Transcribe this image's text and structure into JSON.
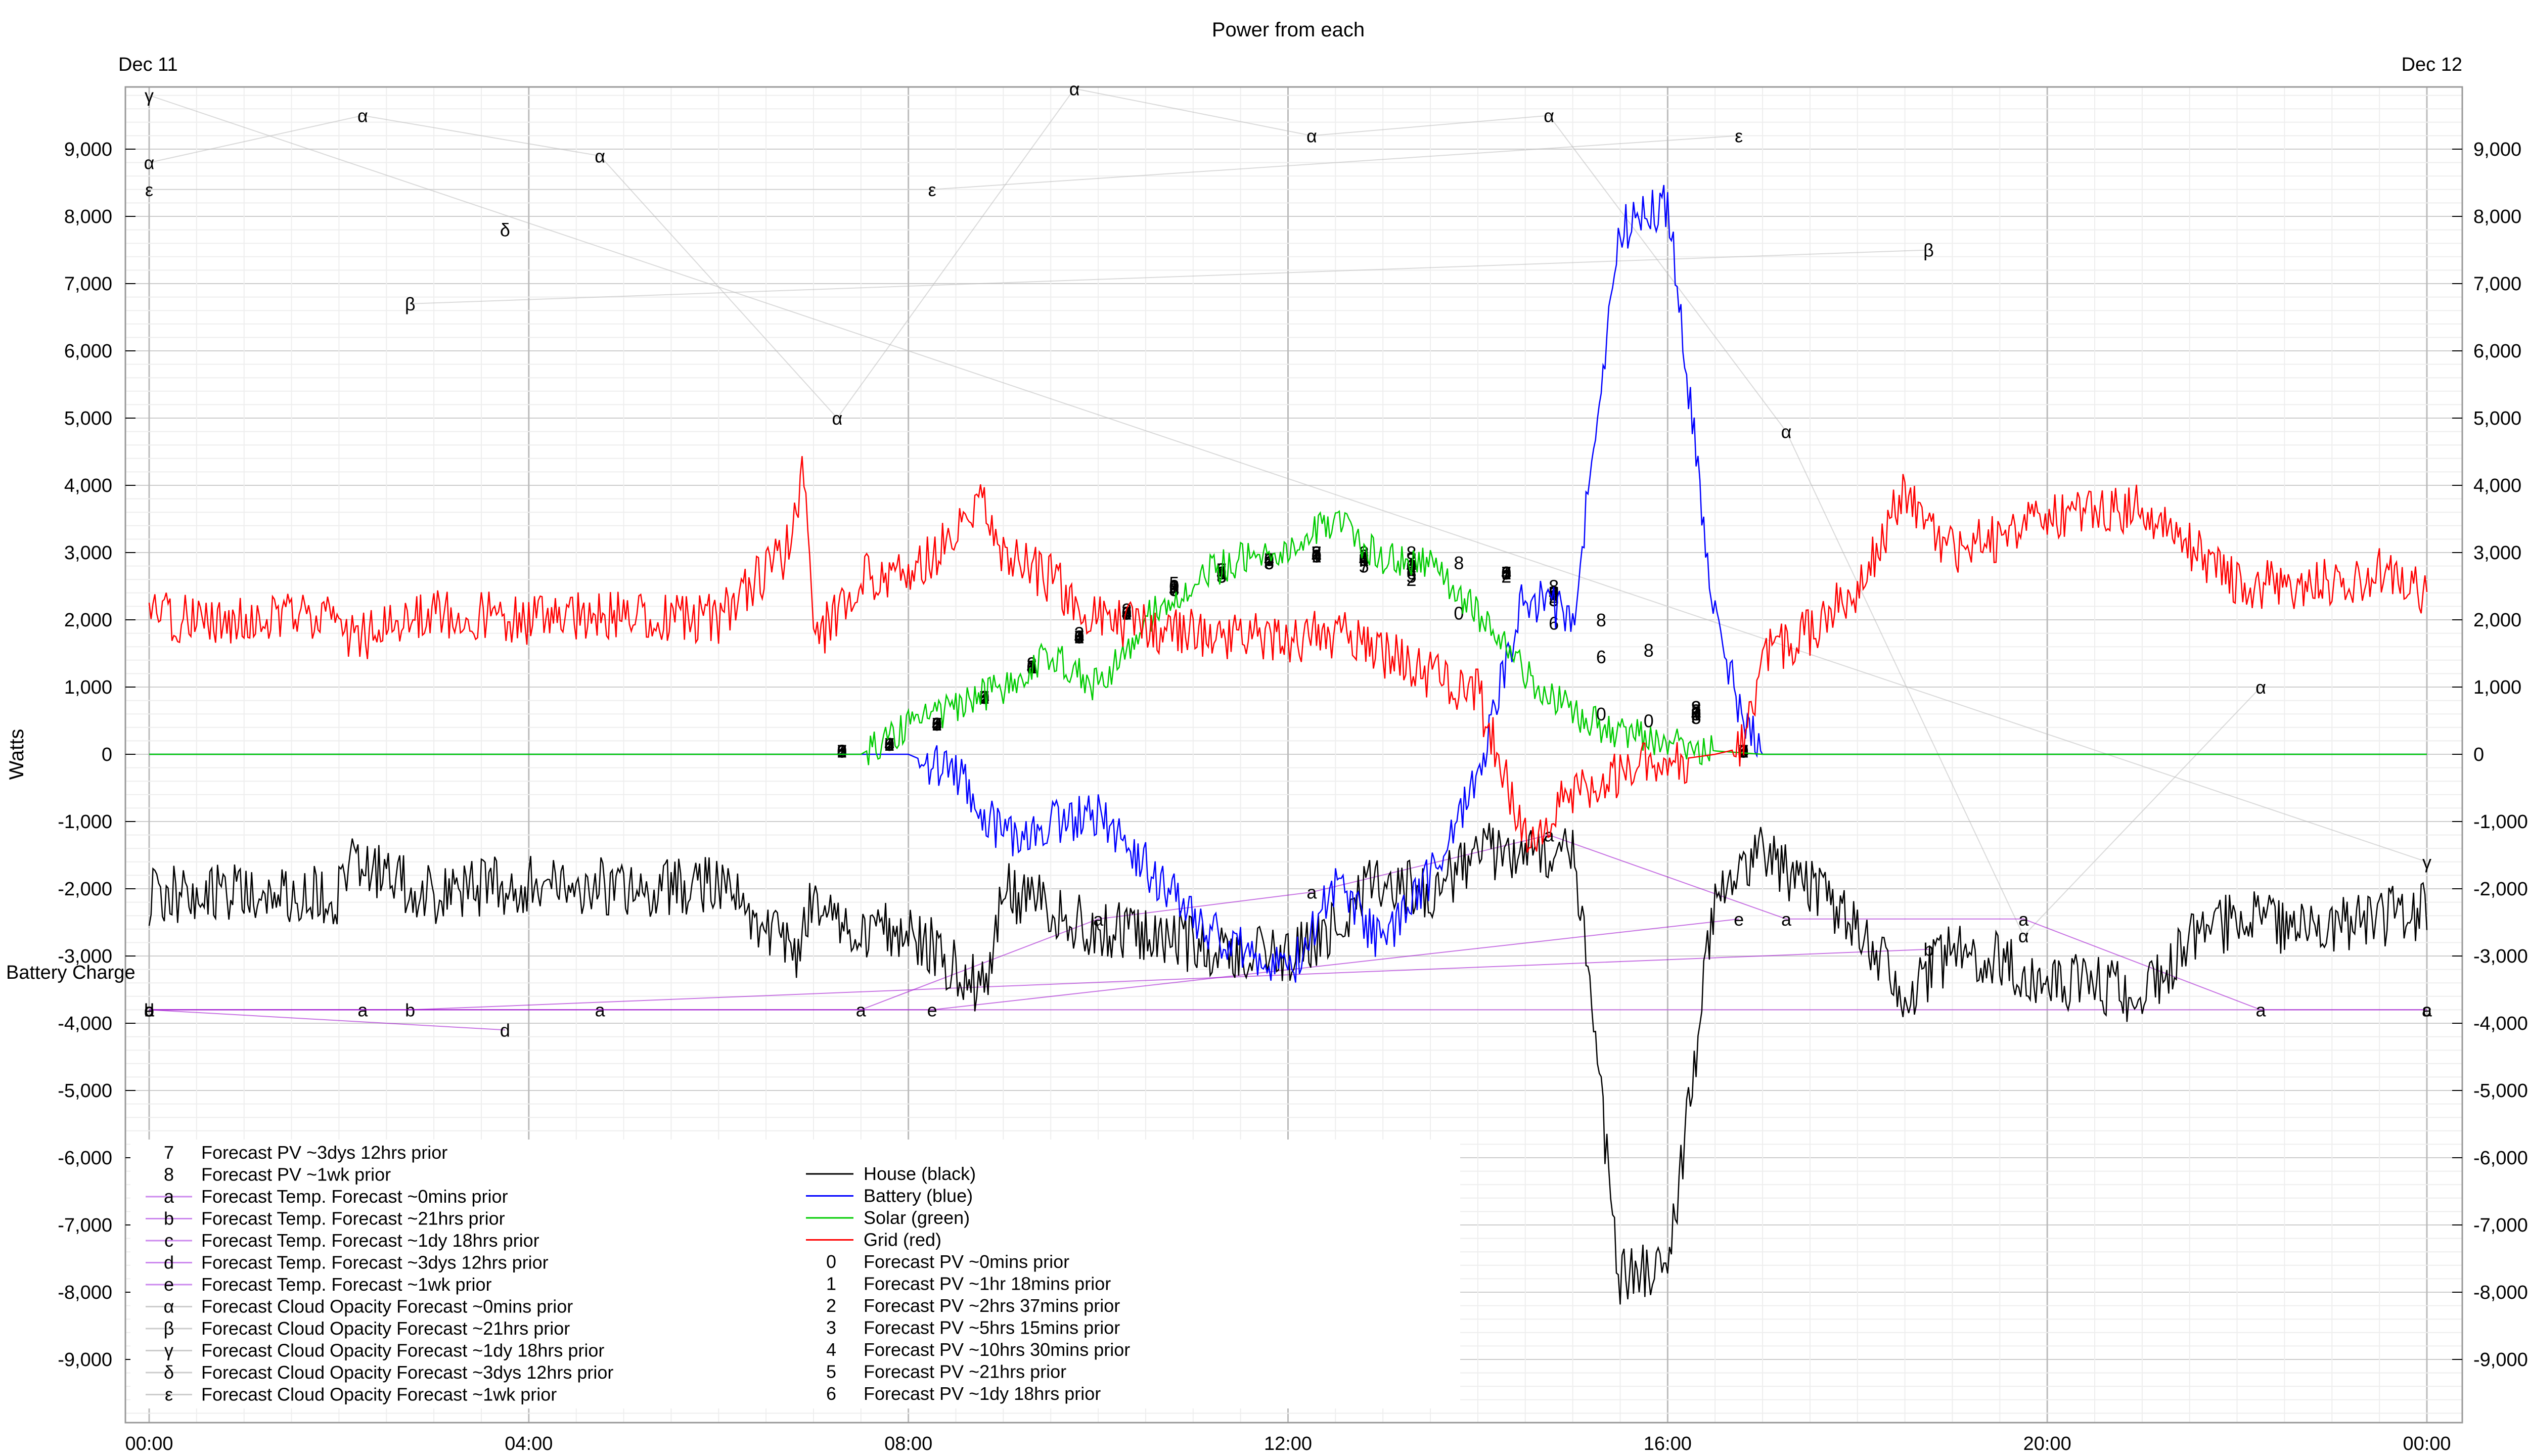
{
  "chart_data": {
    "type": "line",
    "title": "Power from each",
    "ylabel": "Watts",
    "battery_label": "Battery Charge",
    "date_start": "Dec 11",
    "date_end": "Dec 12",
    "x_ticks": [
      "00:00",
      "04:00",
      "08:00",
      "12:00",
      "16:00",
      "20:00",
      "00:00"
    ],
    "x_range_hours": [
      0,
      24
    ],
    "ylim": [
      -10000,
      10000
    ],
    "y_ticks": [
      9000,
      8000,
      7000,
      6000,
      5000,
      4000,
      3000,
      2000,
      1000,
      0,
      -1000,
      -2000,
      -3000,
      -4000,
      -5000,
      -6000,
      -7000,
      -8000,
      -9000
    ],
    "y_tick_labels": [
      "9,000",
      "8,000",
      "7,000",
      "6,000",
      "5,000",
      "4,000",
      "3,000",
      "2,000",
      "1,000",
      "0",
      "-1,000",
      "-2,000",
      "-3,000",
      "-4,000",
      "-5,000",
      "-6,000",
      "-7,000",
      "-8,000",
      "-9,000"
    ],
    "grid": true,
    "legend_placement": "bottom-left",
    "series": [
      {
        "name": "House (black)",
        "color": "#000000",
        "x": [
          0,
          1,
          2,
          2.1,
          3,
          4,
          5,
          6,
          6.8,
          7,
          7.5,
          8,
          8.8,
          9,
          10,
          11,
          12,
          12.5,
          13,
          13.5,
          14,
          14.5,
          15,
          15.5,
          16,
          16.5,
          17,
          18,
          18.5,
          19,
          20,
          21,
          21.5,
          22,
          23,
          23.5,
          24
        ],
        "values": [
          -2100,
          -2050,
          -2100,
          -1600,
          -2100,
          -1900,
          -2000,
          -1900,
          -3000,
          -2100,
          -2700,
          -2600,
          -3500,
          -2000,
          -2600,
          -2800,
          -3100,
          -2500,
          -1800,
          -2100,
          -1400,
          -1500,
          -1300,
          -7800,
          -7600,
          -2200,
          -1500,
          -2500,
          -3600,
          -2900,
          -3300,
          -3600,
          -2800,
          -2450,
          -2600,
          -2450,
          -2300
        ]
      },
      {
        "name": "Battery (blue)",
        "color": "#0000ff",
        "x": [
          0,
          7,
          8,
          8.5,
          9,
          10,
          11,
          11.5,
          12,
          12.5,
          13,
          13.5,
          14,
          14.5,
          15,
          15.5,
          16,
          16.5,
          16.8,
          17,
          24
        ],
        "values": [
          0,
          0,
          0,
          -300,
          -1200,
          -900,
          -2400,
          -2900,
          -3300,
          -1900,
          -2900,
          -1800,
          -300,
          2400,
          2000,
          7800,
          8200,
          2000,
          500,
          0,
          0
        ]
      },
      {
        "name": "Solar (green)",
        "color": "#00cc00",
        "x": [
          0,
          7,
          7.5,
          8,
          8.5,
          9,
          9.5,
          10,
          10.5,
          11,
          11.5,
          12,
          12.5,
          13,
          13.5,
          14,
          14.5,
          15,
          15.5,
          16,
          16.5,
          17,
          24
        ],
        "values": [
          0,
          0,
          0,
          400,
          700,
          1000,
          1500,
          1000,
          2000,
          2600,
          2900,
          3000,
          3500,
          2900,
          2800,
          2100,
          1200,
          600,
          300,
          200,
          50,
          0,
          0
        ]
      },
      {
        "name": "Grid (red)",
        "color": "#ff0000",
        "x": [
          0,
          1,
          2,
          2.1,
          3,
          4,
          5,
          6,
          6.7,
          6.9,
          7,
          7.5,
          8,
          8.8,
          9,
          9.5,
          10,
          11,
          12,
          12.5,
          13,
          13.5,
          14,
          14.5,
          15,
          15.5,
          16,
          16.5,
          16.8,
          17,
          17.5,
          18,
          18.5,
          19,
          20,
          21,
          21.5,
          22,
          23,
          23.5,
          24
        ],
        "values": [
          2050,
          2000,
          2100,
          1700,
          2100,
          2000,
          2100,
          2000,
          3000,
          4200,
          1600,
          2700,
          2600,
          3700,
          3000,
          2600,
          2000,
          1800,
          1700,
          1800,
          1500,
          1200,
          900,
          -1300,
          -500,
          -300,
          -100,
          0,
          100,
          1500,
          1800,
          2500,
          3900,
          3000,
          3500,
          3700,
          3100,
          2500,
          2550,
          2700,
          2350
        ]
      },
      {
        "name": "Forecast PV ~0mins prior",
        "marker": "0",
        "x": [
          7.3,
          7.8,
          8.3,
          8.8,
          9.3,
          9.8,
          10.3,
          10.8,
          11.3,
          11.8,
          12.3,
          12.8,
          13.3,
          13.8,
          14.3,
          14.8,
          15.3,
          15.8,
          16.3,
          16.8
        ],
        "values": [
          50,
          150,
          450,
          850,
          1300,
          1750,
          2100,
          2500,
          2700,
          2900,
          2950,
          2900,
          2800,
          2100,
          2700,
          2400,
          600,
          500,
          600,
          50
        ]
      },
      {
        "name": "Forecast PV ~1hr 18mins prior",
        "marker": "1",
        "x": [
          7.3,
          7.8,
          8.3,
          8.8,
          9.3,
          9.8,
          10.3,
          10.8,
          11.3,
          11.8,
          12.3,
          12.8,
          13.3,
          14.3,
          14.8,
          16.3,
          16.8
        ],
        "values": [
          50,
          150,
          450,
          850,
          1300,
          1750,
          2100,
          2500,
          2700,
          2900,
          2950,
          2900,
          2800,
          2700,
          2400,
          600,
          50
        ]
      },
      {
        "name": "Forecast PV ~2hrs 37mins prior",
        "marker": "2",
        "x": [
          7.3,
          7.8,
          8.3,
          8.8,
          9.3,
          9.8,
          10.3,
          10.8,
          11.3,
          11.8,
          12.3,
          12.8,
          13.3,
          14.3,
          14.8,
          16.3,
          16.8
        ],
        "values": [
          50,
          150,
          450,
          850,
          1350,
          1750,
          2150,
          2500,
          2750,
          2900,
          3000,
          2950,
          2600,
          2650,
          2350,
          650,
          50
        ]
      },
      {
        "name": "Forecast PV ~5hrs 15mins prior",
        "marker": "3",
        "x": [
          7.3,
          7.8,
          8.3,
          8.8,
          9.3,
          9.8,
          10.3,
          10.8,
          11.3,
          11.8,
          12.3,
          12.8,
          13.3,
          14.3,
          14.8,
          16.3,
          16.8
        ],
        "values": [
          50,
          150,
          450,
          850,
          1300,
          1800,
          2100,
          2450,
          2650,
          2850,
          3000,
          2950,
          2900,
          2700,
          2300,
          700,
          50
        ]
      },
      {
        "name": "Forecast PV ~10hrs 30mins prior",
        "marker": "4",
        "x": [
          7.3,
          7.8,
          8.3,
          8.8,
          9.3,
          9.8,
          10.3,
          10.8,
          11.3,
          11.8,
          12.3,
          12.8,
          13.3,
          14.3,
          14.8,
          16.3,
          16.8
        ],
        "values": [
          50,
          150,
          450,
          850,
          1300,
          1750,
          2100,
          2450,
          2700,
          2900,
          2950,
          2900,
          2800,
          2700,
          2400,
          600,
          50
        ]
      },
      {
        "name": "Forecast PV ~21hrs prior",
        "marker": "5",
        "x": [
          7.3,
          7.8,
          8.3,
          8.8,
          9.3,
          9.8,
          10.3,
          10.8,
          11.3,
          11.8,
          12.3,
          12.8,
          13.3,
          14.3,
          14.8,
          16.3,
          16.8
        ],
        "values": [
          50,
          150,
          450,
          850,
          1300,
          1750,
          2100,
          2550,
          2650,
          2850,
          3000,
          2800,
          2650,
          2700,
          2300,
          550,
          50
        ]
      },
      {
        "name": "Forecast PV ~1dy 18hrs prior",
        "marker": "6",
        "x": [
          7.3,
          7.8,
          8.3,
          8.8,
          9.3,
          9.8,
          10.3,
          10.8,
          11.3,
          11.8,
          12.3,
          12.8,
          13.3,
          14.3,
          14.8,
          15.3,
          16.3,
          16.8
        ],
        "values": [
          50,
          150,
          450,
          850,
          1300,
          1750,
          2100,
          2450,
          2650,
          2850,
          2950,
          2900,
          2700,
          2700,
          1950,
          1450,
          550,
          50
        ]
      },
      {
        "name": "Forecast PV ~3dys 12hrs prior",
        "marker": "7",
        "x": [
          7.3,
          7.8,
          8.3,
          8.8,
          9.3,
          9.8,
          10.3,
          10.8,
          11.3,
          11.8,
          12.3,
          12.8,
          13.3,
          14.3,
          14.8,
          16.3,
          16.8
        ],
        "values": [
          50,
          150,
          450,
          850,
          1300,
          1750,
          2100,
          2450,
          2750,
          2900,
          3000,
          2800,
          2900,
          2700,
          2400,
          650,
          50
        ]
      },
      {
        "name": "Forecast PV ~1wk prior",
        "marker": "8",
        "x": [
          7.3,
          7.8,
          8.3,
          8.8,
          9.3,
          9.8,
          10.3,
          10.8,
          11.3,
          11.8,
          12.3,
          12.8,
          13.3,
          13.8,
          14.3,
          14.8,
          15.3,
          15.8,
          16.3,
          16.8
        ],
        "values": [
          50,
          150,
          450,
          850,
          1350,
          1750,
          2100,
          2500,
          2750,
          2900,
          3000,
          3000,
          3000,
          2850,
          2700,
          2500,
          2000,
          1550,
          700,
          50
        ]
      },
      {
        "name": "Forecast Temp. Forecast ~0mins prior",
        "marker": "a",
        "color": "#9900cc",
        "x": [
          0,
          2.25,
          4.75,
          7.5,
          10,
          12.25,
          14.75,
          17.25,
          19.75,
          22.25,
          24
        ],
        "values": [
          -3800,
          -3800,
          -3800,
          -3800,
          -2450,
          -2050,
          -1200,
          -2450,
          -2450,
          -3800,
          -3800
        ]
      },
      {
        "name": "Forecast Temp. Forecast ~21hrs prior",
        "marker": "b",
        "color": "#9900cc",
        "x": [
          0,
          2.75,
          18.75
        ],
        "values": [
          -3800,
          -3800,
          -2900
        ]
      },
      {
        "name": "Forecast Temp. Forecast ~1dy 18hrs prior",
        "marker": "c",
        "color": "#9900cc",
        "x": [
          0,
          24
        ],
        "values": [
          -3800,
          -3800
        ]
      },
      {
        "name": "Forecast Temp. Forecast ~3dys 12hrs prior",
        "marker": "d",
        "color": "#9900cc",
        "x": [
          0,
          3.75
        ],
        "values": [
          -3800,
          -4100
        ]
      },
      {
        "name": "Forecast Temp. Forecast ~1wk prior",
        "marker": "e",
        "color": "#9900cc",
        "x": [
          0,
          8.25,
          16.75
        ],
        "values": [
          -3800,
          -3800,
          -2450
        ]
      },
      {
        "name": "Forecast Cloud Opacity Forecast ~0mins prior",
        "marker": "α",
        "color": "#bbbbbb",
        "x": [
          0,
          2.25,
          4.75,
          7.25,
          9.75,
          12.25,
          14.75,
          17.25,
          19.75,
          22.25
        ],
        "values": [
          8800,
          9500,
          8900,
          5000,
          9900,
          9200,
          9500,
          4800,
          -2700,
          1000
        ]
      },
      {
        "name": "Forecast Cloud Opacity Forecast ~21hrs prior",
        "marker": "β",
        "color": "#bbbbbb",
        "x": [
          2.75,
          18.75
        ],
        "values": [
          6700,
          7500
        ]
      },
      {
        "name": "Forecast Cloud Opacity Forecast ~1dy 18hrs prior",
        "marker": "γ",
        "color": "#bbbbbb",
        "x": [
          0,
          24
        ],
        "values": [
          9800,
          -1600
        ]
      },
      {
        "name": "Forecast Cloud Opacity Forecast ~3dys 12hrs prior",
        "marker": "δ",
        "color": "#bbbbbb",
        "x": [
          3.75
        ],
        "values": [
          7800
        ]
      },
      {
        "name": "Forecast Cloud Opacity Forecast ~1wk prior",
        "marker": "ε",
        "color": "#bbbbbb",
        "x": [
          0,
          8.25,
          16.75
        ],
        "values": [
          8400,
          8400,
          9200
        ]
      }
    ],
    "legend_left": [
      {
        "sym": "7",
        "label": "Forecast PV ~3dys 12hrs prior",
        "line": ""
      },
      {
        "sym": "8",
        "label": "Forecast PV ~1wk prior",
        "line": ""
      },
      {
        "sym": "a",
        "label": "Forecast Temp. Forecast ~0mins prior",
        "line": "#cc88ee"
      },
      {
        "sym": "b",
        "label": "Forecast Temp. Forecast ~21hrs prior",
        "line": "#cc88ee"
      },
      {
        "sym": "c",
        "label": "Forecast Temp. Forecast ~1dy 18hrs prior",
        "line": "#cc88ee"
      },
      {
        "sym": "d",
        "label": "Forecast Temp. Forecast ~3dys 12hrs prior",
        "line": "#cc88ee"
      },
      {
        "sym": "e",
        "label": "Forecast Temp. Forecast ~1wk prior",
        "line": "#cc88ee"
      },
      {
        "sym": "α",
        "label": "Forecast Cloud Opacity Forecast ~0mins prior",
        "line": "#cccccc"
      },
      {
        "sym": "β",
        "label": "Forecast Cloud Opacity Forecast ~21hrs prior",
        "line": "#cccccc"
      },
      {
        "sym": "γ",
        "label": "Forecast Cloud Opacity Forecast ~1dy 18hrs prior",
        "line": "#cccccc"
      },
      {
        "sym": "δ",
        "label": "Forecast Cloud Opacity Forecast ~3dys 12hrs prior",
        "line": "#cccccc"
      },
      {
        "sym": "ε",
        "label": "Forecast Cloud Opacity Forecast ~1wk prior",
        "line": "#cccccc"
      }
    ],
    "legend_right": [
      {
        "sym": "",
        "label": "House (black)",
        "line": "#000000"
      },
      {
        "sym": "",
        "label": "Battery (blue)",
        "line": "#0000ff"
      },
      {
        "sym": "",
        "label": "Solar (green)",
        "line": "#00cc00"
      },
      {
        "sym": "",
        "label": "Grid (red)",
        "line": "#ff0000"
      },
      {
        "sym": "0",
        "label": "Forecast PV ~0mins prior",
        "line": ""
      },
      {
        "sym": "1",
        "label": "Forecast PV ~1hr 18mins prior",
        "line": ""
      },
      {
        "sym": "2",
        "label": "Forecast PV ~2hrs 37mins prior",
        "line": ""
      },
      {
        "sym": "3",
        "label": "Forecast PV ~5hrs 15mins prior",
        "line": ""
      },
      {
        "sym": "4",
        "label": "Forecast PV ~10hrs 30mins prior",
        "line": ""
      },
      {
        "sym": "5",
        "label": "Forecast PV ~21hrs prior",
        "line": ""
      },
      {
        "sym": "6",
        "label": "Forecast PV ~1dy 18hrs prior",
        "line": ""
      }
    ]
  }
}
